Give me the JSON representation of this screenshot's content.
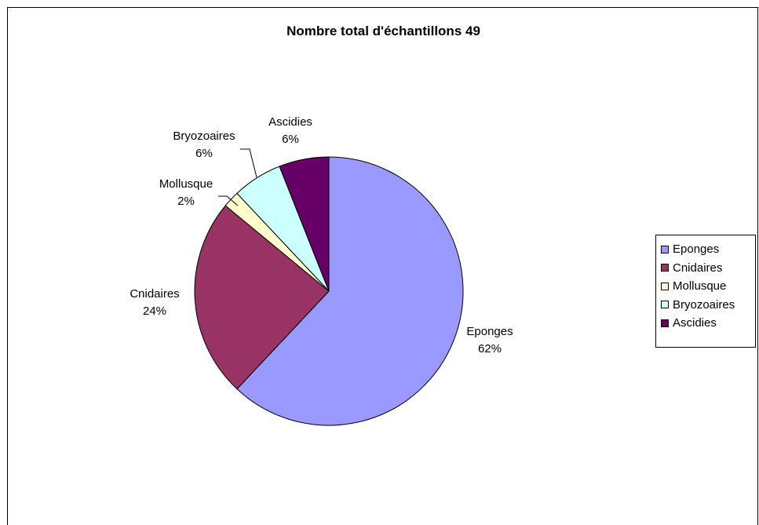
{
  "chart_data": {
    "type": "pie",
    "title": "Nombre total d'échantillons 49",
    "slices": [
      {
        "name": "Eponges",
        "percent": 62,
        "label_pct": "62%",
        "color": "#9999ff"
      },
      {
        "name": "Cnidaires",
        "percent": 24,
        "label_pct": "24%",
        "color": "#993366"
      },
      {
        "name": "Mollusque",
        "percent": 2,
        "label_pct": "2%",
        "color": "#ffffcc"
      },
      {
        "name": "Bryozoaires",
        "percent": 6,
        "label_pct": "6%",
        "color": "#ccffff"
      },
      {
        "name": "Ascidies",
        "percent": 6,
        "label_pct": "6%",
        "color": "#660066"
      }
    ],
    "legend_position": "right"
  }
}
